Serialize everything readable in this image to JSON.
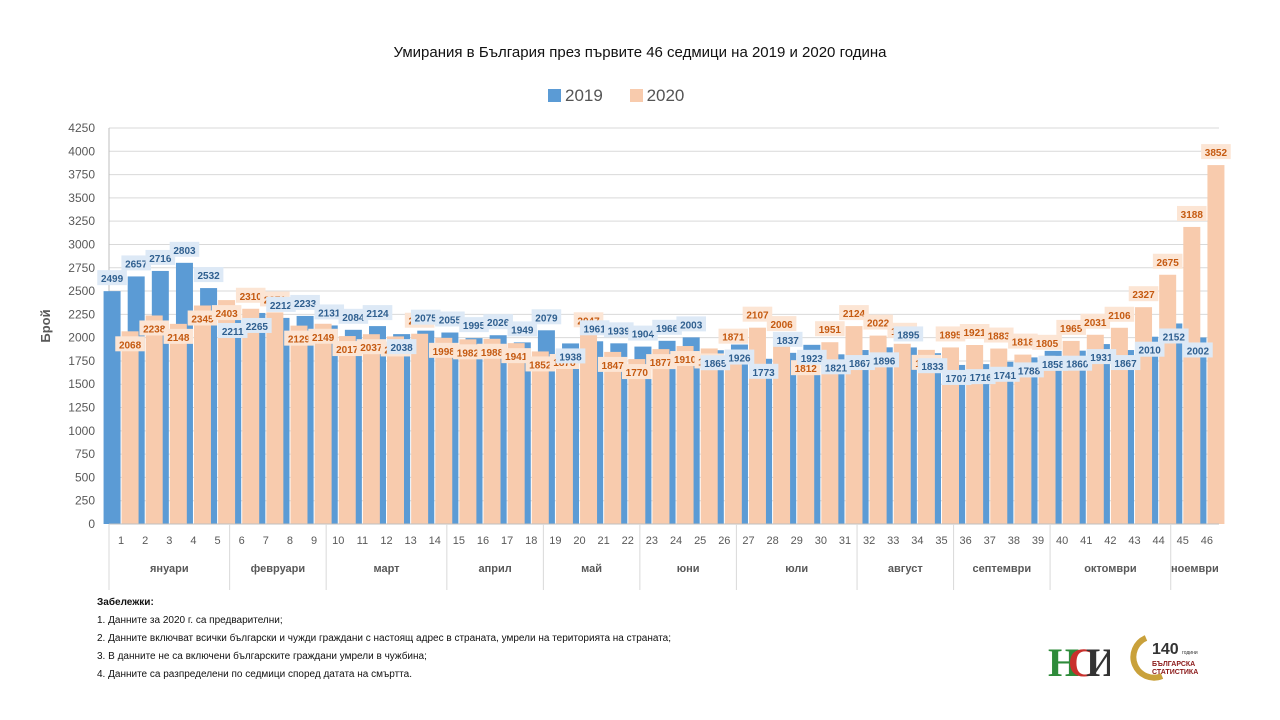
{
  "chart_data": {
    "type": "bar",
    "title": "Умирания в България през първите 46 седмици на 2019 и 2020 година",
    "ylabel": "Брой",
    "ylim": [
      0,
      4250
    ],
    "ytick_step": 250,
    "grid": true,
    "legend_position": "top",
    "categories": [
      "1",
      "2",
      "3",
      "4",
      "5",
      "6",
      "7",
      "8",
      "9",
      "10",
      "11",
      "12",
      "13",
      "14",
      "15",
      "16",
      "17",
      "18",
      "19",
      "20",
      "21",
      "22",
      "23",
      "24",
      "25",
      "26",
      "27",
      "28",
      "29",
      "30",
      "31",
      "32",
      "33",
      "34",
      "35",
      "36",
      "37",
      "38",
      "39",
      "40",
      "41",
      "42",
      "43",
      "44",
      "45",
      "46"
    ],
    "series": [
      {
        "name": "2019",
        "color": "#5b9bd5",
        "values": [
          2499,
          2657,
          2716,
          2803,
          2532,
          2211,
          2265,
          2212,
          2233,
          2131,
          2084,
          2124,
          2038,
          2075,
          2055,
          1995,
          2026,
          1949,
          2079,
          1938,
          1961,
          1939,
          1904,
          1966,
          2003,
          1865,
          1926,
          1773,
          1837,
          1923,
          1821,
          1867,
          1896,
          1895,
          1833,
          1707,
          1716,
          1741,
          1788,
          1858,
          1860,
          1931,
          1867,
          2010,
          2152,
          2002
        ]
      },
      {
        "name": "2020",
        "color": "#f8cbad",
        "values": [
          2068,
          2238,
          2148,
          2345,
          2403,
          2310,
          2271,
          2129,
          2149,
          2017,
          2037,
          2013,
          2042,
          1998,
          1982,
          1988,
          1941,
          1852,
          1878,
          2047,
          1847,
          1770,
          1877,
          1910,
          1884,
          1871,
          2107,
          2006,
          1812,
          1951,
          2124,
          2022,
          1934,
          1869,
          1895,
          1921,
          1883,
          1818,
          1805,
          1965,
          2031,
          2106,
          2327,
          2675,
          3188,
          3852
        ]
      }
    ],
    "months": [
      {
        "label": "януари",
        "start": 1,
        "end": 5
      },
      {
        "label": "февруари",
        "start": 6,
        "end": 9
      },
      {
        "label": "март",
        "start": 10,
        "end": 14
      },
      {
        "label": "април",
        "start": 15,
        "end": 18
      },
      {
        "label": "май",
        "start": 19,
        "end": 22
      },
      {
        "label": "юни",
        "start": 23,
        "end": 26
      },
      {
        "label": "юли",
        "start": 27,
        "end": 31
      },
      {
        "label": "август",
        "start": 32,
        "end": 35
      },
      {
        "label": "септември",
        "start": 36,
        "end": 39
      },
      {
        "label": "октомври",
        "start": 40,
        "end": 44
      },
      {
        "label": "ноември",
        "start": 45,
        "end": 46
      }
    ]
  },
  "notes": {
    "title": "Забележки:",
    "items": [
      "1. Данните за 2020 г. са предварителни;",
      "2. Данните включват всички български и чужди граждани с настоящ адрес в страната, умрели на територията на страната;",
      "3. В данните не са включени българските граждани умрели в чужбина;",
      "4. Данните са разпределени по седмици според  датата на смъртта."
    ]
  },
  "logos": {
    "nsi": "НСИ",
    "anniversary_number": "140",
    "anniversary_suffix": "години",
    "anniversary_line1": "БЪЛГАРСКА",
    "anniversary_line2": "СТАТИСТИКА"
  }
}
